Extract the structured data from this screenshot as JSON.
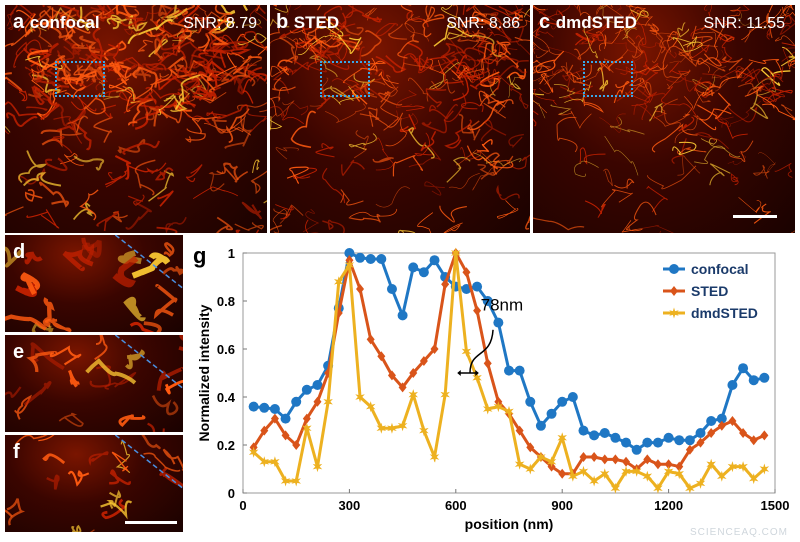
{
  "panels": {
    "a": {
      "letter": "a",
      "name": "confocal",
      "snr": "SNR: 8.79"
    },
    "b": {
      "letter": "b",
      "name": "STED",
      "snr": "SNR: 8.86"
    },
    "c": {
      "letter": "c",
      "name": "dmdSTED",
      "snr": "SNR: 11.55"
    },
    "d": {
      "letter": "d"
    },
    "e": {
      "letter": "e"
    },
    "f": {
      "letter": "f"
    }
  },
  "watermark": "SCIENCEAQ.COM",
  "colors": {
    "confocal": "#1f77c4",
    "STED": "#d9541a",
    "dmdSTED": "#edb120",
    "roi": "#39a7e8"
  },
  "chart_data": {
    "type": "line",
    "panel_letter": "g",
    "xlabel": "position (nm)",
    "ylabel": "Normalized intensity",
    "xlim": [
      0,
      1500
    ],
    "ylim": [
      0,
      1
    ],
    "xticks": [
      "0",
      "300",
      "600",
      "900",
      "1200",
      "1500"
    ],
    "yticks": [
      "0",
      "0.2",
      "0.4",
      "0.6",
      "0.8",
      "1"
    ],
    "legend_position": "top-right",
    "annotation": "78nm",
    "x": [
      30,
      60,
      90,
      120,
      150,
      180,
      210,
      240,
      270,
      300,
      330,
      360,
      390,
      420,
      450,
      480,
      510,
      540,
      570,
      600,
      630,
      660,
      690,
      720,
      750,
      780,
      810,
      840,
      870,
      900,
      930,
      960,
      990,
      1020,
      1050,
      1080,
      1110,
      1140,
      1170,
      1200,
      1230,
      1260,
      1290,
      1320,
      1350,
      1380,
      1410,
      1440,
      1470
    ],
    "series": [
      {
        "name": "confocal",
        "marker": "circle",
        "values": [
          0.36,
          0.355,
          0.35,
          0.31,
          0.38,
          0.43,
          0.45,
          0.53,
          0.77,
          1.0,
          0.98,
          0.975,
          0.975,
          0.85,
          0.74,
          0.94,
          0.92,
          0.97,
          0.9,
          0.86,
          0.85,
          0.86,
          0.8,
          0.71,
          0.51,
          0.51,
          0.38,
          0.28,
          0.33,
          0.38,
          0.4,
          0.26,
          0.24,
          0.25,
          0.23,
          0.21,
          0.18,
          0.21,
          0.21,
          0.23,
          0.22,
          0.22,
          0.25,
          0.3,
          0.31,
          0.45,
          0.52,
          0.47,
          0.48
        ]
      },
      {
        "name": "STED",
        "marker": "diamond",
        "values": [
          0.19,
          0.26,
          0.31,
          0.24,
          0.2,
          0.31,
          0.38,
          0.5,
          0.75,
          0.97,
          0.85,
          0.64,
          0.57,
          0.49,
          0.44,
          0.5,
          0.55,
          0.6,
          0.87,
          1.0,
          0.92,
          0.76,
          0.54,
          0.38,
          0.33,
          0.26,
          0.19,
          0.15,
          0.11,
          0.08,
          0.08,
          0.15,
          0.15,
          0.14,
          0.14,
          0.13,
          0.1,
          0.14,
          0.12,
          0.12,
          0.11,
          0.18,
          0.21,
          0.25,
          0.28,
          0.3,
          0.25,
          0.22,
          0.24
        ]
      },
      {
        "name": "dmdSTED",
        "marker": "star",
        "values": [
          0.17,
          0.13,
          0.13,
          0.05,
          0.05,
          0.27,
          0.11,
          0.38,
          0.88,
          0.95,
          0.4,
          0.36,
          0.27,
          0.27,
          0.28,
          0.41,
          0.26,
          0.15,
          0.41,
          1.0,
          0.59,
          0.48,
          0.35,
          0.36,
          0.34,
          0.12,
          0.1,
          0.15,
          0.13,
          0.23,
          0.07,
          0.09,
          0.05,
          0.08,
          0.02,
          0.09,
          0.09,
          0.07,
          0.02,
          0.09,
          0.08,
          0.02,
          0.04,
          0.12,
          0.07,
          0.11,
          0.11,
          0.06,
          0.1
        ]
      }
    ]
  }
}
